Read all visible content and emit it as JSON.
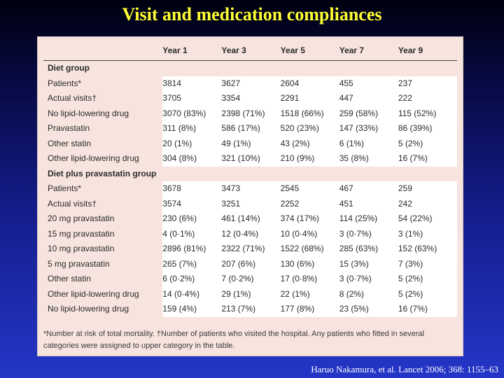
{
  "title": "Visit and medication compliances",
  "table": {
    "headers": [
      "",
      "Year 1",
      "Year 3",
      "Year 5",
      "Year 7",
      "Year 9"
    ],
    "sections": [
      {
        "group": "Diet group",
        "rows": [
          {
            "label": "Patients*",
            "cells": [
              "3814",
              "3627",
              "2604",
              "455",
              "237"
            ]
          },
          {
            "label": "Actual visits†",
            "cells": [
              "3705",
              "3354",
              "2291",
              "447",
              "222"
            ]
          },
          {
            "label": "No lipid-lowering drug",
            "cells": [
              "3070 (83%)",
              "2398 (71%)",
              "1518 (66%)",
              "259 (58%)",
              "115 (52%)"
            ]
          },
          {
            "label": "Pravastatin",
            "cells": [
              "311 (8%)",
              "586 (17%)",
              "520 (23%)",
              "147 (33%)",
              "86 (39%)"
            ]
          },
          {
            "label": "Other statin",
            "cells": [
              "20 (1%)",
              "49 (1%)",
              "43 (2%)",
              "6 (1%)",
              "5 (2%)"
            ]
          },
          {
            "label": "Other lipid-lowering drug",
            "cells": [
              "304 (8%)",
              "321 (10%)",
              "210 (9%)",
              "35 (8%)",
              "16 (7%)"
            ]
          }
        ]
      },
      {
        "group": "Diet plus pravastatin group",
        "rows": [
          {
            "label": "Patients*",
            "cells": [
              "3678",
              "3473",
              "2545",
              "467",
              "259"
            ]
          },
          {
            "label": "Actual visits†",
            "cells": [
              "3574",
              "3251",
              "2252",
              "451",
              "242"
            ]
          },
          {
            "label": "20 mg pravastatin",
            "cells": [
              "230 (6%)",
              "461 (14%)",
              "374 (17%)",
              "114 (25%)",
              "54 (22%)"
            ]
          },
          {
            "label": "15 mg pravastatin",
            "cells": [
              "4 (0·1%)",
              "12 (0·4%)",
              "10 (0·4%)",
              "3 (0·7%)",
              "3 (1%)"
            ]
          },
          {
            "label": "10 mg pravastatin",
            "cells": [
              "2896 (81%)",
              "2322 (71%)",
              "1522 (68%)",
              "285 (63%)",
              "152 (63%)"
            ]
          },
          {
            "label": "5 mg pravastatin",
            "cells": [
              "265 (7%)",
              "207 (6%)",
              "130 (6%)",
              "15 (3%)",
              "7 (3%)"
            ]
          },
          {
            "label": "Other statin",
            "cells": [
              "6 (0·2%)",
              "7 (0·2%)",
              "17 (0·8%)",
              "3 (0·7%)",
              "5 (2%)"
            ]
          },
          {
            "label": "Other lipid-lowering drug",
            "cells": [
              "14 (0·4%)",
              "29 (1%)",
              "22 (1%)",
              "8 (2%)",
              "5 (2%)"
            ]
          },
          {
            "label": "No lipid-lowering drug",
            "cells": [
              "159 (4%)",
              "213 (7%)",
              "177 (8%)",
              "23 (5%)",
              "16 (7%)"
            ]
          }
        ]
      }
    ]
  },
  "footnote": "*Number at risk of total mortality. †Number of patients who visited the hospital. Any patients who fitted in several categories were assigned to upper category in the table.",
  "citation": "Haruo Nakamura, et al. Lancet 2006; 368: 1155–63"
}
